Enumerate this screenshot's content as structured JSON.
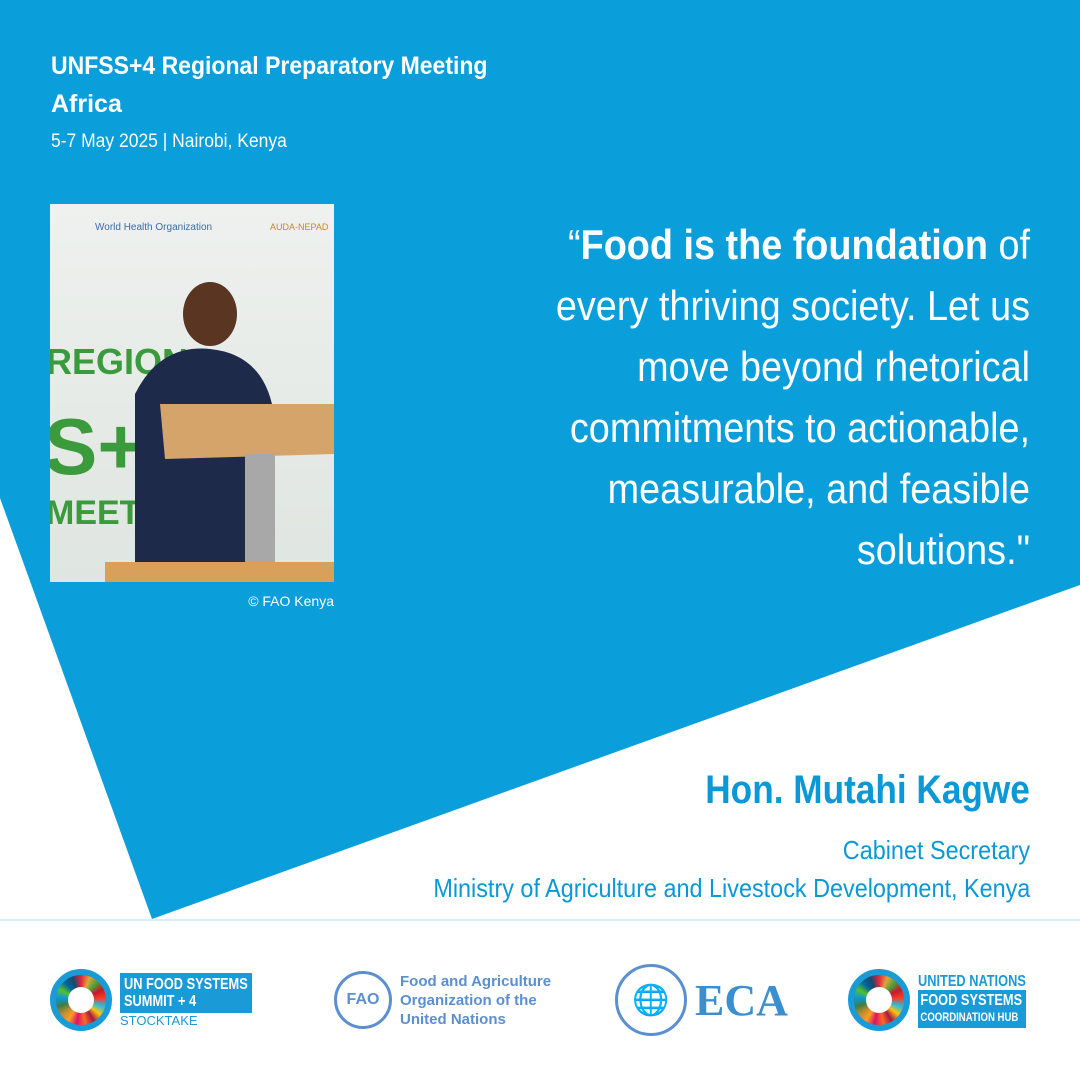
{
  "colors": {
    "brand_blue": "#0a9edb",
    "text_blue": "#0a98d6"
  },
  "header": {
    "title_line1": "UNFSS+4 Regional Preparatory Meeting",
    "title_line2": "Africa",
    "date_location": "5-7 May 2025 | Nairobi, Kenya"
  },
  "photo": {
    "credit": "© FAO Kenya",
    "banner_texts": [
      "World Health Organization",
      "REGION",
      "S+4",
      "MEETING",
      "AUDA-NEPAD"
    ]
  },
  "quote": {
    "open": "“",
    "bold": "Food is the foundation",
    "rest": " of every thriving society. Let us move beyond rhetorical commitments to actionable, measurable, and feasible solutions.\""
  },
  "speaker": {
    "name": "Hon. Mutahi Kagwe",
    "role": "Cabinet Secretary",
    "organization": "Ministry of Agriculture and Livestock Development, Kenya"
  },
  "logos": {
    "unfss": {
      "line1": "UN FOOD SYSTEMS",
      "line2": "SUMMIT + 4",
      "line3": "STOCKTAKE"
    },
    "fao": {
      "mark": "FAO",
      "line1": "Food and Agriculture",
      "line2": "Organization of the",
      "line3": "United Nations"
    },
    "eca": {
      "text": "ECA"
    },
    "hub": {
      "line1": "UNITED NATIONS",
      "line2": "FOOD SYSTEMS",
      "line3": "COORDINATION HUB"
    }
  }
}
